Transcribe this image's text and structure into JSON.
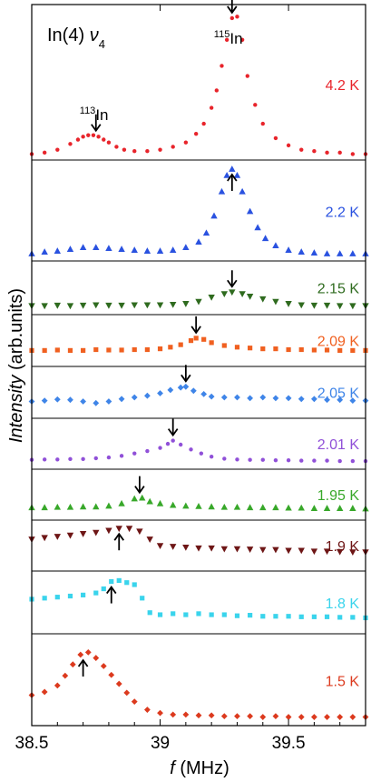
{
  "chart_data": {
    "type": "scatter",
    "title": "In(4) ν4",
    "title_parts": {
      "main": "In(4) ",
      "nu": "ν",
      "sub": "4"
    },
    "xlabel_italic": "f",
    "xlabel_rest": " (MHz)",
    "ylabel_italic": "Intensity",
    "ylabel_rest": "  (arb.units)",
    "xlim": [
      38.5,
      39.8
    ],
    "x_ticks": [
      38.5,
      39.0,
      39.5
    ],
    "x_tick_labels": [
      "38.5",
      "39",
      "39.5"
    ],
    "annotations": [
      {
        "sup": "115",
        "text": "In",
        "x": 39.28,
        "panel": "4.2 K"
      },
      {
        "sup": "113",
        "text": "In",
        "x": 38.75,
        "panel": "4.2 K"
      }
    ],
    "series": [
      {
        "name": "4.2 K",
        "color": "#e8242b",
        "marker": "circle",
        "arrow_x": 39.28,
        "arrow_dir": "down",
        "hollow_arrow_x": 38.75,
        "x": [
          38.5,
          38.55,
          38.6,
          38.65,
          38.68,
          38.7,
          38.72,
          38.74,
          38.76,
          38.78,
          38.8,
          38.83,
          38.86,
          38.9,
          38.95,
          39.0,
          39.05,
          39.1,
          39.14,
          39.17,
          39.2,
          39.22,
          39.24,
          39.26,
          39.28,
          39.3,
          39.32,
          39.34,
          39.37,
          39.4,
          39.45,
          39.5,
          39.55,
          39.6,
          39.65,
          39.7,
          39.75,
          39.8
        ],
        "y": [
          0.01,
          0.02,
          0.04,
          0.08,
          0.11,
          0.13,
          0.14,
          0.14,
          0.13,
          0.11,
          0.09,
          0.06,
          0.04,
          0.03,
          0.03,
          0.04,
          0.06,
          0.09,
          0.15,
          0.22,
          0.33,
          0.45,
          0.62,
          0.8,
          0.95,
          0.96,
          0.8,
          0.55,
          0.35,
          0.22,
          0.12,
          0.07,
          0.04,
          0.03,
          0.02,
          0.02,
          0.01,
          0.01
        ]
      },
      {
        "name": "2.2 K",
        "color": "#2a52e0",
        "marker": "triangle-up",
        "arrow_x": 39.28,
        "arrow_dir": "up",
        "x": [
          38.5,
          38.55,
          38.6,
          38.65,
          38.7,
          38.75,
          38.8,
          38.85,
          38.9,
          38.95,
          39.0,
          39.05,
          39.1,
          39.15,
          39.18,
          39.21,
          39.24,
          39.26,
          39.28,
          39.3,
          39.32,
          39.35,
          39.38,
          39.41,
          39.45,
          39.5,
          39.55,
          39.6,
          39.65,
          39.7,
          39.75,
          39.8
        ],
        "y": [
          0.03,
          0.05,
          0.06,
          0.08,
          0.1,
          0.1,
          0.09,
          0.08,
          0.07,
          0.06,
          0.06,
          0.07,
          0.1,
          0.16,
          0.26,
          0.45,
          0.72,
          0.9,
          0.97,
          0.9,
          0.72,
          0.5,
          0.32,
          0.2,
          0.12,
          0.07,
          0.05,
          0.04,
          0.03,
          0.03,
          0.03,
          0.03
        ]
      },
      {
        "name": "2.15 K",
        "color": "#2f6b1f",
        "marker": "triangle-down",
        "arrow_x": 39.28,
        "arrow_dir": "down",
        "x": [
          38.5,
          38.55,
          38.6,
          38.65,
          38.7,
          38.75,
          38.8,
          38.85,
          38.9,
          38.95,
          39.0,
          39.05,
          39.1,
          39.15,
          39.2,
          39.25,
          39.28,
          39.32,
          39.35,
          39.4,
          39.45,
          39.5,
          39.55,
          39.6,
          39.65,
          39.7,
          39.75,
          39.8
        ],
        "y": [
          0.1,
          0.1,
          0.11,
          0.1,
          0.11,
          0.12,
          0.11,
          0.11,
          0.12,
          0.12,
          0.12,
          0.13,
          0.15,
          0.2,
          0.3,
          0.38,
          0.42,
          0.38,
          0.32,
          0.26,
          0.2,
          0.15,
          0.12,
          0.11,
          0.11,
          0.1,
          0.1,
          0.1
        ]
      },
      {
        "name": "2.09 K",
        "color": "#f06020",
        "marker": "square",
        "arrow_x": 39.14,
        "arrow_dir": "down",
        "x": [
          38.5,
          38.55,
          38.6,
          38.65,
          38.7,
          38.75,
          38.8,
          38.85,
          38.9,
          38.95,
          39.0,
          39.04,
          39.08,
          39.12,
          39.14,
          39.17,
          39.2,
          39.25,
          39.3,
          39.35,
          39.4,
          39.45,
          39.5,
          39.55,
          39.6,
          39.65,
          39.7,
          39.75,
          39.8
        ],
        "y": [
          0.28,
          0.28,
          0.29,
          0.28,
          0.28,
          0.3,
          0.29,
          0.29,
          0.3,
          0.3,
          0.32,
          0.36,
          0.42,
          0.52,
          0.58,
          0.55,
          0.47,
          0.4,
          0.36,
          0.34,
          0.32,
          0.32,
          0.3,
          0.3,
          0.29,
          0.29,
          0.28,
          0.28,
          0.28
        ]
      },
      {
        "name": "2.05 K",
        "color": "#3f85e8",
        "marker": "diamond",
        "arrow_x": 39.1,
        "arrow_dir": "down",
        "x": [
          38.5,
          38.55,
          38.6,
          38.65,
          38.7,
          38.75,
          38.8,
          38.85,
          38.9,
          38.95,
          39.0,
          39.04,
          39.08,
          39.1,
          39.13,
          39.17,
          39.2,
          39.25,
          39.3,
          39.35,
          39.4,
          39.45,
          39.5,
          39.55,
          39.6,
          39.65,
          39.7,
          39.75,
          39.8
        ],
        "y": [
          0.3,
          0.32,
          0.35,
          0.34,
          0.3,
          0.26,
          0.3,
          0.36,
          0.4,
          0.44,
          0.5,
          0.58,
          0.64,
          0.66,
          0.56,
          0.48,
          0.42,
          0.4,
          0.4,
          0.38,
          0.4,
          0.38,
          0.38,
          0.36,
          0.36,
          0.34,
          0.34,
          0.32,
          0.32
        ]
      },
      {
        "name": "2.01 K",
        "color": "#9050d8",
        "marker": "circle",
        "arrow_x": 39.05,
        "arrow_dir": "down",
        "x": [
          38.5,
          38.55,
          38.6,
          38.65,
          38.7,
          38.75,
          38.8,
          38.85,
          38.9,
          38.95,
          39.0,
          39.03,
          39.05,
          39.08,
          39.12,
          39.16,
          39.2,
          39.25,
          39.3,
          39.35,
          39.4,
          39.45,
          39.5,
          39.55,
          39.6,
          39.65,
          39.7,
          39.75,
          39.8
        ],
        "y": [
          0.12,
          0.13,
          0.13,
          0.14,
          0.14,
          0.16,
          0.18,
          0.22,
          0.28,
          0.34,
          0.42,
          0.52,
          0.6,
          0.5,
          0.38,
          0.28,
          0.2,
          0.15,
          0.13,
          0.12,
          0.12,
          0.11,
          0.11,
          0.1,
          0.1,
          0.1,
          0.09,
          0.09,
          0.09
        ]
      },
      {
        "name": "1.95 K",
        "color": "#38a82a",
        "marker": "triangle-up",
        "arrow_x": 38.92,
        "arrow_dir": "down",
        "x": [
          38.5,
          38.55,
          38.6,
          38.65,
          38.7,
          38.75,
          38.8,
          38.85,
          38.9,
          38.93,
          38.96,
          39.0,
          39.05,
          39.1,
          39.15,
          39.2,
          39.25,
          39.3,
          39.35,
          39.4,
          39.45,
          39.5,
          39.55,
          39.6,
          39.65,
          39.7,
          39.75,
          39.8
        ],
        "y": [
          0.2,
          0.2,
          0.21,
          0.21,
          0.22,
          0.22,
          0.24,
          0.3,
          0.42,
          0.44,
          0.35,
          0.3,
          0.26,
          0.24,
          0.23,
          0.22,
          0.21,
          0.21,
          0.2,
          0.2,
          0.2,
          0.19,
          0.19,
          0.18,
          0.18,
          0.18,
          0.18,
          0.17
        ]
      },
      {
        "name": "1.9 K",
        "color": "#6e1616",
        "marker": "triangle-down",
        "arrow_x": 38.84,
        "arrow_dir": "up",
        "x": [
          38.5,
          38.55,
          38.6,
          38.65,
          38.7,
          38.75,
          38.8,
          38.84,
          38.88,
          38.92,
          38.96,
          39.0,
          39.05,
          39.1,
          39.15,
          39.2,
          39.25,
          39.3,
          39.35,
          39.4,
          39.45,
          39.5,
          39.55,
          39.6,
          39.65,
          39.7,
          39.75,
          39.8
        ],
        "y": [
          0.68,
          0.72,
          0.75,
          0.78,
          0.82,
          0.85,
          0.9,
          0.95,
          0.95,
          0.88,
          0.68,
          0.52,
          0.5,
          0.48,
          0.46,
          0.46,
          0.44,
          0.44,
          0.43,
          0.42,
          0.42,
          0.4,
          0.4,
          0.38,
          0.38,
          0.37,
          0.36,
          0.36
        ]
      },
      {
        "name": "1.8 K",
        "color": "#3ad4ec",
        "marker": "square",
        "arrow_x": 38.81,
        "arrow_dir": "up",
        "x": [
          38.5,
          38.55,
          38.6,
          38.65,
          38.7,
          38.75,
          38.78,
          38.81,
          38.84,
          38.87,
          38.9,
          38.93,
          38.96,
          39.0,
          39.05,
          39.1,
          39.15,
          39.2,
          39.25,
          39.3,
          39.35,
          39.4,
          39.45,
          39.5,
          39.55,
          39.6,
          39.65,
          39.7,
          39.75,
          39.8
        ],
        "y": [
          0.58,
          0.6,
          0.62,
          0.64,
          0.66,
          0.7,
          0.78,
          0.92,
          0.94,
          0.9,
          0.86,
          0.6,
          0.32,
          0.28,
          0.3,
          0.28,
          0.3,
          0.28,
          0.28,
          0.26,
          0.27,
          0.25,
          0.25,
          0.25,
          0.24,
          0.24,
          0.24,
          0.23,
          0.23,
          0.22
        ]
      },
      {
        "name": "1.5 K",
        "color": "#dc3a1e",
        "marker": "diamond",
        "arrow_x": 38.7,
        "arrow_dir": "up",
        "x": [
          38.5,
          38.55,
          38.6,
          38.63,
          38.66,
          38.69,
          38.72,
          38.75,
          38.78,
          38.81,
          38.84,
          38.87,
          38.9,
          38.95,
          39.0,
          39.05,
          39.1,
          39.15,
          39.2,
          39.25,
          39.3,
          39.35,
          39.4,
          39.45,
          39.5,
          39.55,
          39.6,
          39.65,
          39.7,
          39.75,
          39.8
        ],
        "y": [
          0.32,
          0.36,
          0.44,
          0.56,
          0.7,
          0.82,
          0.85,
          0.78,
          0.68,
          0.57,
          0.46,
          0.35,
          0.24,
          0.14,
          0.1,
          0.08,
          0.08,
          0.07,
          0.07,
          0.06,
          0.06,
          0.06,
          0.05,
          0.06,
          0.05,
          0.05,
          0.05,
          0.05,
          0.05,
          0.05,
          0.05
        ]
      }
    ]
  }
}
